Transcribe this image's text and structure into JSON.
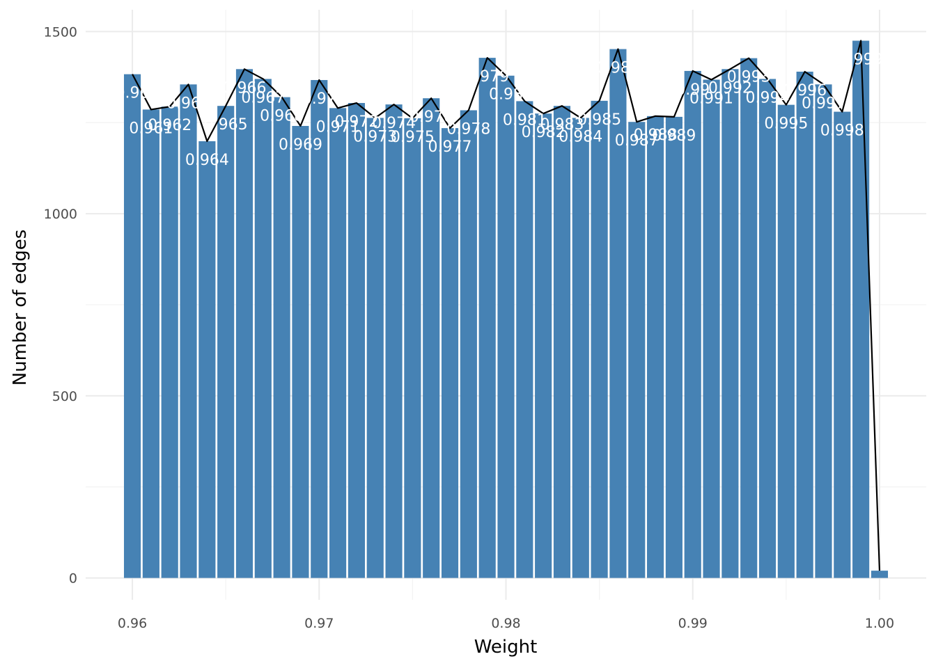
{
  "chart_data": {
    "type": "bar",
    "title": "",
    "xlabel": "Weight",
    "ylabel": "Number of edges",
    "xlim": [
      0.9575,
      1.0025
    ],
    "ylim": [
      -60,
      1560
    ],
    "x_ticks": [
      "0.96",
      "0.97",
      "0.98",
      "0.99",
      "1.00"
    ],
    "x_tick_values": [
      0.96,
      0.97,
      0.98,
      0.99,
      1.0
    ],
    "y_ticks": [
      "0",
      "500",
      "1000",
      "1500"
    ],
    "y_tick_values": [
      0,
      500,
      1000,
      1500
    ],
    "grid": true,
    "bar_color": "#4682b4",
    "line_color": "#000000",
    "label_color": "#ffffff",
    "x": [
      0.96,
      0.961,
      0.962,
      0.963,
      0.964,
      0.965,
      0.966,
      0.967,
      0.968,
      0.969,
      0.97,
      0.971,
      0.972,
      0.973,
      0.974,
      0.975,
      0.976,
      0.977,
      0.978,
      0.979,
      0.98,
      0.981,
      0.982,
      0.983,
      0.984,
      0.985,
      0.986,
      0.987,
      0.988,
      0.989,
      0.99,
      0.991,
      0.992,
      0.993,
      0.994,
      0.995,
      0.996,
      0.997,
      0.998,
      0.999,
      1.0
    ],
    "values": [
      1383,
      1286,
      1294,
      1355,
      1199,
      1296,
      1397,
      1370,
      1320,
      1241,
      1367,
      1290,
      1304,
      1263,
      1300,
      1262,
      1317,
      1235,
      1284,
      1428,
      1379,
      1309,
      1275,
      1296,
      1263,
      1310,
      1452,
      1252,
      1268,
      1266,
      1392,
      1368,
      1397,
      1427,
      1370,
      1299,
      1390,
      1355,
      1280,
      1475,
      20
    ],
    "labels": [
      "0.96",
      "0.961",
      "0.962",
      "0.963",
      "0.964",
      "0.965",
      "0.966",
      "0.967",
      "0.968",
      "0.969",
      "0.97",
      "0.971",
      "0.972",
      "0.973",
      "0.974",
      "0.975",
      "0.976",
      "0.977",
      "0.978",
      "0.979",
      "0.98",
      "0.981",
      "0.982",
      "0.983",
      "0.984",
      "0.985",
      "0.986",
      "0.987",
      "0.988",
      "0.989",
      "0.99",
      "0.991",
      "0.992",
      "0.993",
      "0.994",
      "0.995",
      "0.996",
      "0.997",
      "0.998",
      "0.999",
      ""
    ]
  }
}
